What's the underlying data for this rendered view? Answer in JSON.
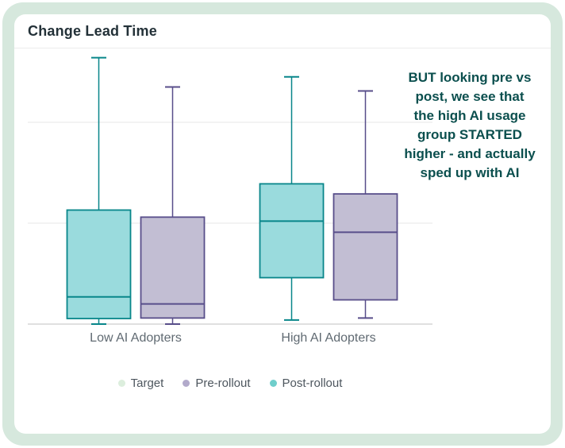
{
  "header": {
    "title": "Change Lead Time"
  },
  "annotation": {
    "lines": [
      "BUT looking pre vs",
      "post, we see that",
      "the high AI usage",
      "group STARTED",
      "higher - and actually",
      "sped up with AI"
    ],
    "color": "#0b4f4e"
  },
  "legend": {
    "items": [
      {
        "label": "Target",
        "color": "#dceedd"
      },
      {
        "label": "Pre-rollout",
        "color": "#b2aacb"
      },
      {
        "label": "Post-rollout",
        "color": "#6fcecb"
      }
    ]
  },
  "chart_data": {
    "type": "boxplot",
    "title": "Change Lead Time",
    "categories": [
      "Low AI Adopters",
      "High AI Adopters"
    ],
    "xlabel": "",
    "ylabel": "",
    "ylim": [
      0,
      2.7
    ],
    "gridlines": [
      1,
      2
    ],
    "grid": true,
    "y_axis_labels_visible": false,
    "legend_position": "bottom",
    "colors": {
      "post_fill": "#9adbdd",
      "post_stroke": "#08868a",
      "pre_fill": "#c2bed3",
      "pre_stroke": "#584e8a",
      "axis": "#d6d6d6",
      "gridline": "#ededed"
    },
    "series": [
      {
        "name": "Post-rollout",
        "fill": "#9adbdd",
        "stroke": "#08868a",
        "boxes": [
          {
            "category": "Low AI Adopters",
            "min": 0,
            "q1": 0.055,
            "median": 0.27,
            "q3": 1.13,
            "max": 2.64
          },
          {
            "category": "High AI Adopters",
            "min": 0.04,
            "q1": 0.46,
            "median": 1.02,
            "q3": 1.39,
            "max": 2.45
          }
        ]
      },
      {
        "name": "Pre-rollout",
        "fill": "#c2bed3",
        "stroke": "#584e8a",
        "boxes": [
          {
            "category": "Low AI Adopters",
            "min": 0,
            "q1": 0.06,
            "median": 0.2,
            "q3": 1.06,
            "max": 2.35
          },
          {
            "category": "High AI Adopters",
            "min": 0.06,
            "q1": 0.24,
            "median": 0.91,
            "q3": 1.29,
            "max": 2.31
          }
        ]
      }
    ]
  }
}
